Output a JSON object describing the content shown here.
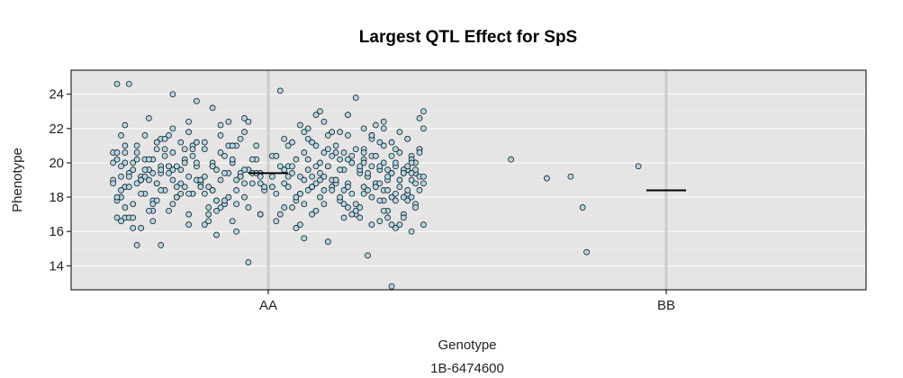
{
  "chart_data": {
    "type": "scatter",
    "title": "Largest QTL Effect for SpS",
    "xlabel": "Genotype",
    "ylabel": "Phenotype",
    "marker": "1B-6474600",
    "categories": [
      "AA",
      "BB"
    ],
    "ylim": [
      12.6,
      25.4
    ],
    "yticks": [
      14,
      16,
      18,
      20,
      22,
      24
    ],
    "grid": true,
    "background_color": "#e5e5e5",
    "point_fill": "#add8e6",
    "point_stroke": "#000000",
    "groups": [
      {
        "category": "AA",
        "mean": 19.4,
        "jitter_offsets": [
          -0.38,
          -0.24,
          -0.14,
          0.12,
          0.2,
          -0.2,
          0.29,
          0.08,
          -0.36,
          0.24,
          0.39,
          -0.06,
          0.16,
          -0.31,
          -0.12,
          0.26,
          0.35,
          -0.27,
          0.04,
          -0.22,
          0.11,
          0.31,
          -0.36,
          0.17,
          -0.08,
          0.05,
          0.38,
          -0.28,
          0.22,
          -0.16,
          0.14,
          -0.33,
          0.33,
          0.09,
          -0.24,
          0.02,
          -0.19,
          0.27,
          -0.11,
          0.36,
          0.18,
          -0.38,
          0.07,
          -0.29,
          0.24,
          -0.03,
          0.29,
          -0.14,
          0.13,
          -0.34,
          0.37,
          -0.09,
          0.21,
          -0.25,
          0.03,
          0.32,
          -0.18,
          0.15,
          -0.37,
          0.26,
          -0.05,
          0.35,
          -0.22,
          0.1,
          -0.3,
          0.19,
          -0.13,
          0.28,
          -0.02,
          0.34,
          -0.27,
          0.06,
          -0.35,
          0.23,
          -0.1,
          0.31,
          -0.2,
          0.14,
          -0.32,
          0.38,
          -0.07,
          0.25,
          -0.16,
          0.01,
          0.3,
          -0.24,
          0.17,
          -0.39,
          0.09,
          -0.12,
          0.36,
          -0.28,
          0.2,
          -0.04,
          0.27,
          -0.33,
          0.12,
          -0.17,
          0.33,
          -0.21,
          0.05,
          0.24,
          -0.36,
          0.16,
          -0.08,
          0.38,
          -0.26,
          0.1,
          -0.14,
          0.29,
          -0.31,
          0.02,
          0.21,
          -0.19,
          0.35,
          -0.37,
          0.13,
          -0.06,
          0.26,
          -0.23,
          0.07,
          0.32,
          -0.29,
          0.18,
          -0.11,
          0.37,
          -0.34,
          0.04,
          0.23,
          -0.15,
          0.3,
          -0.25,
          0.11,
          -0.02,
          0.34,
          -0.38,
          0.19,
          -0.09,
          0.28,
          -0.2,
          0.08,
          -0.32,
          0.36,
          -0.13,
          0.15,
          -0.27,
          0.25,
          -0.05,
          0.31,
          -0.35,
          0.03,
          0.22,
          -0.18,
          0.39,
          -0.3,
          0.14,
          -0.1,
          0.27,
          -0.24,
          0.09,
          0.33,
          -0.37,
          0.2,
          -0.07,
          0.35,
          -0.28,
          0.06,
          -0.16,
          0.29,
          -0.33,
          0.12,
          0.24,
          -0.21,
          0.38,
          -0.12,
          0.17,
          -0.36,
          0.01,
          0.26,
          -0.26,
          0.31,
          -0.04,
          0.1,
          -0.31,
          0.36,
          -0.18,
          0.21,
          -0.09,
          0.32,
          -0.39,
          0.15,
          -0.14,
          0.28,
          -0.23,
          0.05,
          0.34,
          -0.34,
          0.18,
          -0.06,
          0.23,
          -0.29,
          0.37,
          -0.11,
          0.13,
          -0.25,
          0.3,
          -0.02,
          0.08,
          -0.37,
          0.25,
          -0.17,
          0.33,
          -0.3,
          0.16,
          -0.08,
          0.39,
          -0.22,
          0.04,
          0.27,
          -0.35,
          0.11,
          -0.15,
          0.2,
          -0.27,
          0.35,
          -0.01,
          0.14,
          -0.32,
          0.24,
          -0.19,
          0.31,
          -0.1,
          0.07,
          -0.38,
          0.29,
          -0.13,
          0.19,
          -0.24,
          0.37,
          -0.05,
          0.12,
          -0.29,
          0.22,
          -0.2,
          0.34,
          -0.36,
          0.02,
          0.26,
          -0.16,
          0.32,
          -0.08,
          0.09,
          -0.33,
          0.38,
          -0.12,
          0.18,
          -0.26,
          0.28,
          -0.03,
          0.15,
          -0.39,
          0.21,
          -0.21,
          0.36,
          -0.14,
          0.06,
          -0.31,
          0.3,
          -0.07,
          0.25,
          -0.35,
          0.11,
          -0.18,
          0.33,
          -0.28,
          0.17,
          -0.01,
          0.27,
          -0.37,
          0.08,
          -0.23,
          0.35,
          -0.11,
          0.2,
          -0.3,
          0.03,
          0.23,
          -0.15,
          0.39,
          -0.34,
          0.13,
          -0.06,
          0.29,
          -0.25,
          0.1,
          -0.19,
          0.32,
          -0.38,
          0.16,
          -0.09,
          0.24,
          -0.27,
          0.37,
          -0.04,
          0.05,
          -0.32,
          0.28,
          -0.17,
          0.19,
          -0.22,
          0.34,
          -0.13,
          0.14,
          -0.36,
          0.22,
          -0.02,
          0.3,
          -0.29,
          0.07,
          -0.2,
          0.26,
          -0.1,
          0.38,
          -0.33,
          0.12,
          -0.24,
          0.31,
          -0.07,
          0.17,
          -0.39,
          0.01,
          0.25,
          -0.16,
          0.36,
          -0.28,
          0.09,
          -0.12,
          0.21,
          -0.35,
          0.33,
          -0.05,
          0.15,
          -0.26,
          0.27,
          -0.21,
          0.04,
          -0.31,
          0.37,
          -0.14,
          0.18,
          -0.08,
          0.29,
          -0.37,
          0.1,
          -0.18,
          0.24,
          -0.3,
          0.35,
          -0.03,
          0.13,
          -0.23,
          0.32,
          -0.11,
          0.06,
          -0.34,
          0.26,
          -0.19,
          0.2,
          -0.27,
          0.39,
          -0.06,
          0.16,
          -0.38,
          0.22,
          -0.15,
          0.31,
          -0.09,
          0.02,
          -0.25,
          0.34,
          -0.32,
          0.11,
          -0.2,
          0.28,
          -0.13,
          0.19,
          -0.36,
          0.36,
          -0.02,
          0.08,
          -0.29,
          0.23,
          -0.17,
          0.3,
          -0.1,
          0.14,
          -0.33,
          0.38,
          -0.22,
          0.05,
          -0.07,
          0.25,
          -0.39,
          0.17,
          -0.26,
          0.33,
          -0.12,
          0.21,
          -0.04,
          0.27,
          -0.31,
          0.1,
          -0.16,
          0.37,
          -0.35,
          0.03,
          0.2,
          -0.24,
          0.32,
          -0.08,
          0.12,
          -0.28,
          0.29,
          -0.18
        ],
        "values": [
          24.6,
          24.0,
          23.2,
          22.8,
          22.8,
          22.4,
          22.4,
          22.2,
          22.2,
          22.0,
          22.0,
          21.8,
          21.8,
          21.6,
          21.6,
          21.6,
          21.4,
          21.4,
          21.4,
          21.2,
          21.2,
          21.2,
          21.0,
          21.0,
          21.0,
          21.0,
          20.8,
          20.8,
          20.8,
          20.8,
          20.6,
          20.6,
          20.6,
          20.6,
          20.6,
          20.4,
          20.4,
          20.4,
          20.4,
          20.4,
          20.2,
          20.2,
          20.2,
          20.2,
          20.2,
          20.2,
          20.0,
          20.0,
          20.0,
          20.0,
          20.0,
          20.0,
          20.0,
          19.8,
          19.8,
          19.8,
          19.8,
          19.8,
          19.8,
          19.8,
          19.6,
          19.6,
          19.6,
          19.6,
          19.6,
          19.6,
          19.6,
          19.6,
          19.4,
          19.4,
          19.4,
          19.4,
          19.4,
          19.4,
          19.4,
          19.4,
          19.2,
          19.2,
          19.2,
          19.2,
          19.2,
          19.2,
          19.2,
          19.2,
          19.0,
          19.0,
          19.0,
          19.0,
          19.0,
          19.0,
          19.0,
          18.8,
          18.8,
          18.8,
          18.8,
          18.8,
          18.8,
          18.8,
          18.6,
          18.6,
          18.6,
          18.6,
          18.6,
          18.6,
          18.4,
          18.4,
          18.4,
          18.4,
          18.4,
          18.4,
          18.2,
          18.2,
          18.2,
          18.2,
          18.2,
          18.0,
          18.0,
          18.0,
          18.0,
          18.0,
          17.8,
          17.8,
          17.8,
          17.8,
          17.6,
          17.6,
          17.6,
          17.4,
          17.4,
          17.4,
          17.2,
          17.2,
          17.0,
          17.0,
          17.0,
          16.8,
          16.8,
          16.6,
          16.6,
          16.4,
          16.4,
          16.2,
          16.0,
          15.8,
          15.4,
          15.2,
          14.6,
          14.2,
          12.8,
          24.6,
          24.2,
          23.8,
          23.6,
          23.0,
          22.6,
          22.4,
          22.4,
          22.2,
          22.0,
          21.8,
          21.8,
          21.6,
          21.6,
          21.4,
          21.4,
          21.2,
          21.2,
          21.2,
          21.0,
          21.0,
          21.0,
          20.8,
          20.8,
          20.8,
          20.6,
          20.6,
          20.6,
          20.4,
          20.4,
          20.4,
          20.4,
          20.2,
          20.2,
          20.2,
          20.2,
          20.0,
          20.0,
          20.0,
          20.0,
          20.0,
          19.8,
          19.8,
          19.8,
          19.8,
          19.8,
          19.6,
          19.6,
          19.6,
          19.6,
          19.6,
          19.4,
          19.4,
          19.4,
          19.4,
          19.4,
          19.2,
          19.2,
          19.2,
          19.2,
          19.2,
          19.0,
          19.0,
          19.0,
          19.0,
          19.0,
          18.8,
          18.8,
          18.8,
          18.8,
          18.6,
          18.6,
          18.6,
          18.6,
          18.4,
          18.4,
          18.4,
          18.4,
          18.2,
          18.2,
          18.2,
          18.0,
          18.0,
          18.0,
          17.8,
          17.8,
          17.8,
          17.6,
          17.6,
          17.4,
          17.4,
          17.2,
          17.2,
          17.0,
          17.0,
          16.8,
          16.8,
          16.6,
          16.4,
          16.4,
          16.2,
          16.0,
          15.6,
          15.2,
          22.6,
          22.2,
          21.8,
          21.4,
          21.2,
          21.0,
          20.8,
          20.6,
          20.4,
          20.2,
          20.0,
          19.8,
          19.8,
          19.6,
          19.6,
          19.4,
          19.4,
          19.2,
          19.2,
          19.0,
          19.0,
          18.8,
          18.8,
          18.6,
          18.6,
          18.4,
          18.2,
          18.0,
          17.8,
          17.6,
          17.4,
          17.2,
          17.0,
          16.8,
          16.6,
          16.4,
          16.2,
          23.0,
          22.6,
          22.0,
          21.6,
          21.4,
          21.0,
          20.8,
          20.6,
          20.4,
          20.2,
          20.0,
          19.8,
          19.6,
          19.4,
          19.2,
          19.0,
          18.8,
          18.6,
          18.4,
          18.2,
          18.0,
          17.8,
          17.6,
          17.4,
          17.2,
          17.0,
          16.8,
          16.6,
          16.2,
          21.8,
          21.4,
          21.0,
          20.6,
          20.2,
          19.8,
          19.6,
          19.4,
          19.2,
          19.0,
          18.8,
          18.6,
          18.4,
          18.2,
          18.0,
          17.8,
          17.6,
          17.4,
          17.0,
          16.8,
          16.4,
          22.4,
          21.6,
          20.8,
          20.4,
          20.0,
          19.6,
          19.2,
          18.8,
          18.4,
          18.0,
          17.6,
          17.2,
          16.6,
          22.0,
          21.2,
          20.6,
          20.2,
          19.8,
          19.4,
          19.0,
          18.6,
          18.2,
          17.8,
          17.4,
          16.8,
          21.6,
          20.8,
          20.2,
          19.6,
          19.2,
          18.8,
          18.4,
          18.0,
          17.6,
          17.0,
          16.4,
          21.0,
          20.4,
          19.8,
          19.4,
          19.0,
          18.6,
          18.2,
          17.8,
          17.2,
          20.6,
          20.0,
          19.4,
          18.8,
          18.2,
          17.6,
          19.8,
          19.0,
          18.4
        ]
      },
      {
        "category": "BB",
        "mean": 18.4,
        "jitter_offsets": [
          -0.39,
          -0.3,
          -0.24,
          -0.21,
          -0.2,
          -0.07
        ],
        "values": [
          20.2,
          19.1,
          19.2,
          17.4,
          14.8,
          19.8
        ]
      }
    ]
  }
}
